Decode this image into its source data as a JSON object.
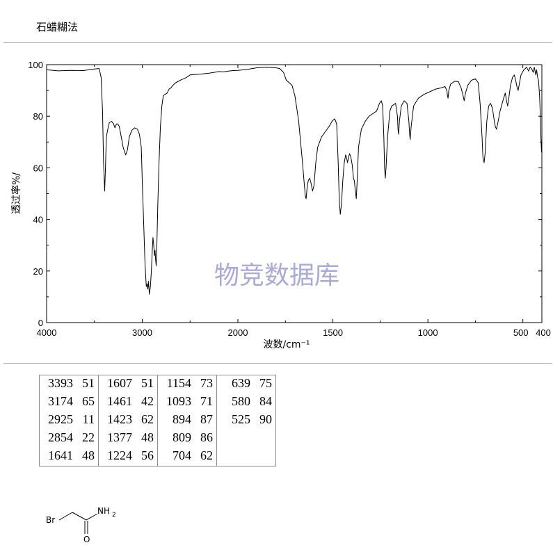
{
  "method": "石蜡糊法",
  "chart_data": {
    "type": "line",
    "xlabel": "波数/cm⁻¹",
    "ylabel": "透过率%/",
    "xlim": [
      4000,
      400
    ],
    "ylim": [
      0,
      100
    ],
    "x_ticks": [
      4000,
      3000,
      2000,
      1500,
      1000,
      500,
      400
    ],
    "x_tick_labels": [
      "4000",
      "3000",
      "2000",
      "1500",
      "1000",
      "500",
      "400"
    ],
    "y_ticks": [
      0,
      20,
      40,
      60,
      80,
      100
    ],
    "y_tick_labels": [
      "0",
      "20",
      "40",
      "60",
      "80",
      "100"
    ],
    "watermark": "物竞数据库",
    "series": [
      {
        "values": [
          [
            4000,
            98
          ],
          [
            3880,
            97.6
          ],
          [
            3750,
            97.8
          ],
          [
            3620,
            97.7
          ],
          [
            3500,
            98.3
          ],
          [
            3450,
            98.5
          ],
          [
            3430,
            95
          ],
          [
            3415,
            82
          ],
          [
            3404,
            62
          ],
          [
            3393,
            51
          ],
          [
            3385,
            60
          ],
          [
            3375,
            72
          ],
          [
            3360,
            75
          ],
          [
            3345,
            77.5
          ],
          [
            3320,
            78
          ],
          [
            3300,
            77
          ],
          [
            3285,
            75.5
          ],
          [
            3270,
            77
          ],
          [
            3255,
            77
          ],
          [
            3240,
            76
          ],
          [
            3220,
            72
          ],
          [
            3200,
            68
          ],
          [
            3174,
            65
          ],
          [
            3155,
            67
          ],
          [
            3135,
            72
          ],
          [
            3110,
            74.5
          ],
          [
            3080,
            75.5
          ],
          [
            3050,
            75
          ],
          [
            3030,
            73
          ],
          [
            3010,
            68
          ],
          [
            3000,
            55
          ],
          [
            2985,
            38
          ],
          [
            2970,
            22
          ],
          [
            2958,
            14
          ],
          [
            2950,
            15
          ],
          [
            2942,
            13
          ],
          [
            2935,
            16
          ],
          [
            2925,
            11
          ],
          [
            2915,
            14
          ],
          [
            2905,
            20
          ],
          [
            2895,
            28
          ],
          [
            2888,
            33
          ],
          [
            2880,
            30
          ],
          [
            2872,
            26
          ],
          [
            2866,
            28
          ],
          [
            2860,
            24
          ],
          [
            2854,
            22
          ],
          [
            2847,
            30
          ],
          [
            2838,
            45
          ],
          [
            2825,
            62
          ],
          [
            2810,
            76
          ],
          [
            2795,
            84
          ],
          [
            2780,
            88
          ],
          [
            2760,
            88.5
          ],
          [
            2740,
            89
          ],
          [
            2720,
            90.5
          ],
          [
            2700,
            91
          ],
          [
            2680,
            92
          ],
          [
            2650,
            93
          ],
          [
            2600,
            94
          ],
          [
            2540,
            95
          ],
          [
            2500,
            96
          ],
          [
            2450,
            96.2
          ],
          [
            2400,
            96.3
          ],
          [
            2350,
            96.5
          ],
          [
            2300,
            96.7
          ],
          [
            2250,
            97
          ],
          [
            2200,
            97.3
          ],
          [
            2150,
            97.2
          ],
          [
            2100,
            97.5
          ],
          [
            2050,
            97.7
          ],
          [
            2000,
            97.8
          ],
          [
            1950,
            98.2
          ],
          [
            1900,
            98.8
          ],
          [
            1850,
            99
          ],
          [
            1800,
            98.8
          ],
          [
            1780,
            98.5
          ],
          [
            1760,
            97
          ],
          [
            1745,
            94
          ],
          [
            1730,
            93
          ],
          [
            1715,
            92
          ],
          [
            1700,
            88
          ],
          [
            1690,
            83
          ],
          [
            1680,
            78
          ],
          [
            1670,
            70
          ],
          [
            1660,
            62
          ],
          [
            1652,
            55
          ],
          [
            1645,
            49
          ],
          [
            1641,
            48
          ],
          [
            1636,
            52
          ],
          [
            1630,
            55
          ],
          [
            1622,
            56
          ],
          [
            1615,
            54
          ],
          [
            1607,
            51
          ],
          [
            1600,
            53
          ],
          [
            1590,
            62
          ],
          [
            1580,
            68
          ],
          [
            1560,
            72
          ],
          [
            1540,
            74
          ],
          [
            1520,
            76
          ],
          [
            1505,
            78
          ],
          [
            1490,
            79
          ],
          [
            1480,
            77
          ],
          [
            1472,
            62
          ],
          [
            1466,
            47
          ],
          [
            1461,
            42
          ],
          [
            1455,
            46
          ],
          [
            1448,
            55
          ],
          [
            1440,
            62
          ],
          [
            1433,
            65
          ],
          [
            1428,
            64
          ],
          [
            1423,
            62
          ],
          [
            1418,
            64
          ],
          [
            1412,
            65.5
          ],
          [
            1405,
            64
          ],
          [
            1398,
            61
          ],
          [
            1392,
            56
          ],
          [
            1387,
            55
          ],
          [
            1383,
            52
          ],
          [
            1377,
            48
          ],
          [
            1372,
            55
          ],
          [
            1365,
            68
          ],
          [
            1350,
            75
          ],
          [
            1330,
            78
          ],
          [
            1310,
            80
          ],
          [
            1290,
            81
          ],
          [
            1270,
            82
          ],
          [
            1255,
            85
          ],
          [
            1245,
            86
          ],
          [
            1238,
            84
          ],
          [
            1232,
            72
          ],
          [
            1228,
            60
          ],
          [
            1224,
            56
          ],
          [
            1220,
            60
          ],
          [
            1212,
            72
          ],
          [
            1200,
            82
          ],
          [
            1190,
            84
          ],
          [
            1170,
            85
          ],
          [
            1160,
            80
          ],
          [
            1157,
            75
          ],
          [
            1154,
            73
          ],
          [
            1150,
            78
          ],
          [
            1140,
            84
          ],
          [
            1125,
            86
          ],
          [
            1110,
            85
          ],
          [
            1100,
            78
          ],
          [
            1096,
            73
          ],
          [
            1093,
            71
          ],
          [
            1088,
            76
          ],
          [
            1075,
            84
          ],
          [
            1050,
            87
          ],
          [
            1020,
            88.5
          ],
          [
            990,
            89.5
          ],
          [
            960,
            90.5
          ],
          [
            930,
            91
          ],
          [
            910,
            91.5
          ],
          [
            900,
            90
          ],
          [
            897,
            88
          ],
          [
            894,
            87
          ],
          [
            890,
            90
          ],
          [
            880,
            92.5
          ],
          [
            860,
            93.5
          ],
          [
            840,
            93.5
          ],
          [
            825,
            91
          ],
          [
            815,
            88
          ],
          [
            809,
            86
          ],
          [
            802,
            89
          ],
          [
            790,
            92
          ],
          [
            770,
            94
          ],
          [
            750,
            94.5
          ],
          [
            735,
            93
          ],
          [
            725,
            85
          ],
          [
            715,
            72
          ],
          [
            710,
            64
          ],
          [
            704,
            62
          ],
          [
            698,
            66
          ],
          [
            690,
            78
          ],
          [
            680,
            84
          ],
          [
            670,
            85
          ],
          [
            660,
            83
          ],
          [
            650,
            78
          ],
          [
            645,
            76
          ],
          [
            639,
            75
          ],
          [
            633,
            77
          ],
          [
            620,
            82
          ],
          [
            605,
            86
          ],
          [
            593,
            89
          ],
          [
            586,
            86
          ],
          [
            580,
            84
          ],
          [
            574,
            87
          ],
          [
            565,
            92
          ],
          [
            555,
            95
          ],
          [
            545,
            96
          ],
          [
            535,
            93
          ],
          [
            530,
            91
          ],
          [
            525,
            90
          ],
          [
            520,
            92
          ],
          [
            510,
            96
          ],
          [
            495,
            98
          ],
          [
            480,
            99
          ],
          [
            470,
            97.5
          ],
          [
            462,
            99
          ],
          [
            455,
            98.5
          ],
          [
            445,
            97
          ],
          [
            440,
            99
          ],
          [
            432,
            96
          ],
          [
            428,
            98
          ],
          [
            422,
            95
          ],
          [
            418,
            94
          ],
          [
            412,
            88
          ],
          [
            408,
            80
          ],
          [
            405,
            72
          ],
          [
            402,
            66
          ]
        ]
      }
    ]
  },
  "peak_table": [
    [
      {
        "wn": "3393",
        "t": "51"
      },
      {
        "wn": "1607",
        "t": "51"
      },
      {
        "wn": "1154",
        "t": "73"
      },
      {
        "wn": "639",
        "t": "75"
      }
    ],
    [
      {
        "wn": "3174",
        "t": "65"
      },
      {
        "wn": "1461",
        "t": "42"
      },
      {
        "wn": "1093",
        "t": "71"
      },
      {
        "wn": "580",
        "t": "84"
      }
    ],
    [
      {
        "wn": "2925",
        "t": "11"
      },
      {
        "wn": "1423",
        "t": "62"
      },
      {
        "wn": "894",
        "t": "87"
      },
      {
        "wn": "525",
        "t": "90"
      }
    ],
    [
      {
        "wn": "2854",
        "t": "22"
      },
      {
        "wn": "1377",
        "t": "48"
      },
      {
        "wn": "809",
        "t": "86"
      },
      {
        "wn": "",
        "t": ""
      }
    ],
    [
      {
        "wn": "1641",
        "t": "48"
      },
      {
        "wn": "1224",
        "t": "56"
      },
      {
        "wn": "704",
        "t": "62"
      },
      {
        "wn": "",
        "t": ""
      }
    ]
  ],
  "structure": {
    "atom_br": "Br",
    "atom_nh": "NH",
    "atom_h_subscript": "2",
    "atom_o": "O"
  }
}
